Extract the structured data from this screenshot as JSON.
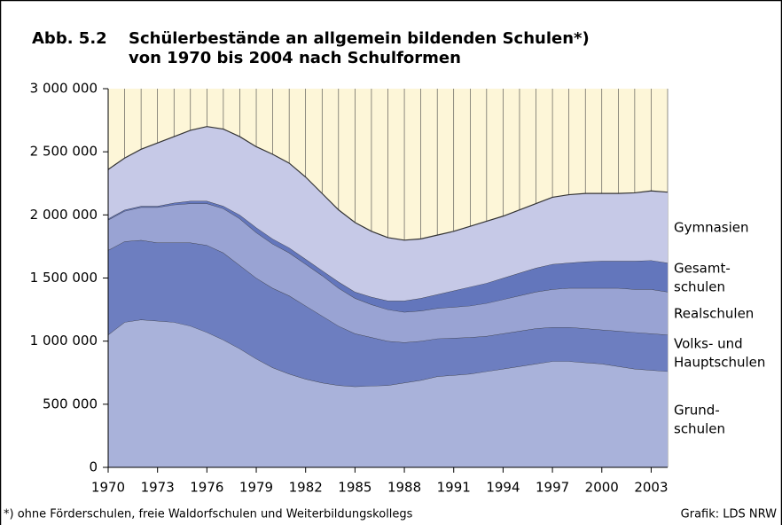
{
  "chart_data": {
    "type": "stacked_area",
    "figure_label": "Abb. 5.2",
    "title": "Schülerbestände an allgemein bildenden Schulen*)",
    "subtitle": "von 1970 bis 2004 nach Schulformen",
    "footnote": "*) ohne Förderschulen, freie Waldorfschulen und Weiterbildungskollegs",
    "source": "Grafik: LDS NRW",
    "x": [
      1970,
      1971,
      1972,
      1973,
      1974,
      1975,
      1976,
      1977,
      1978,
      1979,
      1980,
      1981,
      1982,
      1983,
      1984,
      1985,
      1986,
      1987,
      1988,
      1989,
      1990,
      1991,
      1992,
      1993,
      1994,
      1995,
      1996,
      1997,
      1998,
      1999,
      2000,
      2001,
      2002,
      2003,
      2004
    ],
    "xlim": [
      1970,
      2004
    ],
    "xticks": [
      1970,
      1973,
      1976,
      1979,
      1982,
      1985,
      1988,
      1991,
      1994,
      1997,
      2000,
      2003
    ],
    "ylim": [
      0,
      3000000
    ],
    "yticks": [
      0,
      {
        "value": 500000,
        "label": "500 000"
      },
      {
        "value": 1000000,
        "label": "1 000 000"
      },
      {
        "value": 1500000,
        "label": "1 500 000"
      },
      {
        "value": 2000000,
        "label": "2 000 000"
      },
      {
        "value": 2500000,
        "label": "2 500 000"
      },
      {
        "value": 3000000,
        "label": "3 000 000"
      }
    ],
    "grid": true,
    "series": [
      {
        "name": "Grund-\nschulen",
        "color": "#a9b2da",
        "values": [
          1050000,
          1150000,
          1170000,
          1160000,
          1150000,
          1120000,
          1070000,
          1010000,
          940000,
          860000,
          790000,
          740000,
          700000,
          670000,
          650000,
          640000,
          645000,
          650000,
          670000,
          690000,
          720000,
          730000,
          740000,
          760000,
          780000,
          800000,
          820000,
          840000,
          840000,
          830000,
          820000,
          800000,
          780000,
          770000,
          760000
        ]
      },
      {
        "name": "Volks- und\nHauptschulen",
        "color": "#6d7ec0",
        "values": [
          670000,
          640000,
          630000,
          620000,
          630000,
          660000,
          690000,
          690000,
          660000,
          640000,
          630000,
          620000,
          580000,
          530000,
          470000,
          420000,
          385000,
          350000,
          320000,
          310000,
          300000,
          295000,
          290000,
          280000,
          280000,
          280000,
          280000,
          270000,
          270000,
          270000,
          270000,
          280000,
          290000,
          290000,
          290000
        ]
      },
      {
        "name": "Realschulen",
        "color": "#99a3d3",
        "values": [
          240000,
          240000,
          260000,
          280000,
          300000,
          310000,
          330000,
          350000,
          370000,
          360000,
          350000,
          340000,
          330000,
          320000,
          300000,
          280000,
          260000,
          250000,
          240000,
          240000,
          240000,
          245000,
          250000,
          260000,
          270000,
          280000,
          290000,
          300000,
          310000,
          320000,
          330000,
          340000,
          340000,
          350000,
          340000
        ]
      },
      {
        "name": "Gesamt-\nschulen",
        "color": "#6376bc",
        "values": [
          10000,
          10000,
          10000,
          10000,
          15000,
          20000,
          20000,
          20000,
          30000,
          40000,
          40000,
          40000,
          40000,
          40000,
          50000,
          50000,
          60000,
          70000,
          90000,
          100000,
          110000,
          130000,
          150000,
          160000,
          170000,
          180000,
          190000,
          200000,
          200000,
          210000,
          215000,
          215000,
          225000,
          230000,
          230000
        ]
      },
      {
        "name": "Gymnasien",
        "color": "#c6c9e7",
        "values": [
          390000,
          410000,
          450000,
          500000,
          525000,
          560000,
          590000,
          610000,
          620000,
          640000,
          670000,
          670000,
          650000,
          610000,
          570000,
          550000,
          520000,
          500000,
          480000,
          470000,
          470000,
          470000,
          480000,
          490000,
          490000,
          500000,
          510000,
          530000,
          540000,
          540000,
          535000,
          535000,
          540000,
          550000,
          560000
        ]
      }
    ]
  }
}
